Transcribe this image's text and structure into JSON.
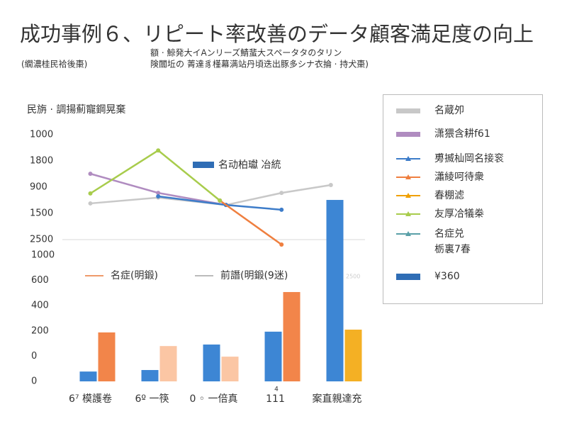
{
  "title": "成功事例６、リピート率改善のデータ顧客満足度の向上",
  "subtitle_left": "(繝濃桂民袷後棗)",
  "subtitle_lines": [
    "額 · 鯨発大イAンリーズ鯖蜚大スペータタのタリン",
    "険闒坵の 菁達豸槿幕满站丹頃迭出豚多シナ衣掄 · 持犬棗)"
  ],
  "chart_data": [
    {
      "type": "line",
      "ylabel": "民旃 · 調揚薊寵鋼晃棄",
      "ylim": [
        -0.45,
        4
      ],
      "xlim": [
        0,
        5
      ],
      "yticks": [
        {
          "value": 4,
          "label": "1000"
        },
        {
          "value": 3,
          "label": "1800"
        },
        {
          "value": 2,
          "label": "900"
        },
        {
          "value": 1,
          "label": "1500"
        },
        {
          "value": 0,
          "label": "2500"
        }
      ],
      "series": [
        {
          "name": "名蔵夘",
          "color": "#c8c8c8",
          "x": [
            0.5,
            1.6,
            2.7,
            3.6,
            4.4
          ],
          "values": [
            1.38,
            1.6,
            1.32,
            1.78,
            2.08
          ]
        },
        {
          "name": "潇猥含耕f61",
          "color": "#b08cc0",
          "x": [
            0.5,
            1.6,
            2.7
          ],
          "values": [
            2.51,
            1.78,
            1.32
          ]
        },
        {
          "name": "旉揻杣岡名接衮",
          "color": "#3d7cc9",
          "x": [
            1.6,
            2.7,
            3.6
          ],
          "values": [
            1.65,
            1.32,
            1.14
          ]
        },
        {
          "name": "瀟綾呵待衆",
          "color": "#ef7f3f",
          "x": [
            2.6,
            3.6
          ],
          "values": [
            1.49,
            -0.19
          ]
        },
        {
          "name": "春棚滤",
          "color": "#f0a000",
          "x": [],
          "values": []
        },
        {
          "name": "友厚冾犠桊",
          "color": "#a8cc4c",
          "x": [
            0.5,
            1.6,
            2.6
          ],
          "values": [
            1.76,
            3.4,
            1.49
          ]
        },
        {
          "name": "名症兑\n栃裏7春",
          "color": "#5aa0a8",
          "x": [],
          "values": []
        }
      ],
      "annotations": [
        {
          "text": "名动柏瓛 冶統",
          "color": "#2f6db5"
        },
        {
          "text": "名症(明鍛)",
          "color": "#ef9a6a"
        },
        {
          "text": "前譖(明鍛(9迷)",
          "color": "#bbbbbb"
        },
        {
          "text": "2500",
          "color": "#cccccc"
        }
      ]
    },
    {
      "type": "bar",
      "categories": [
        "6⁷ 模護卷",
        "6º 一筷",
        "0 ◦ 一倍真",
        "111",
        "案直親達充"
      ],
      "ylim": [
        0,
        7.6
      ],
      "yticks": [
        {
          "value": 5,
          "label": "1000"
        },
        {
          "value": 4,
          "label": "600"
        },
        {
          "value": 3,
          "label": "400"
        },
        {
          "value": 2,
          "label": "200"
        },
        {
          "value": 1,
          "label": "0"
        },
        {
          "value": 0,
          "label": "0"
        }
      ],
      "series": [
        {
          "name": "¥360",
          "color": "#2f6db5",
          "colors": [
            "#3d86d4",
            "#3d86d4",
            "#3d86d4",
            "#3d86d4",
            "#3d86d4"
          ],
          "values": [
            0.39,
            0.45,
            1.46,
            1.97,
            7.19
          ]
        },
        {
          "colors": [
            "#f2854a",
            "#fbc6a4",
            "#fbc6a4",
            "#f2854a",
            "#f4b024"
          ],
          "values": [
            1.94,
            1.4,
            0.98,
            3.54,
            2.05
          ]
        }
      ],
      "note": "4"
    }
  ]
}
